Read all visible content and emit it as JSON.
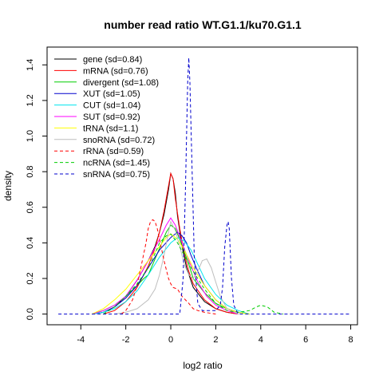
{
  "chart_data": {
    "type": "line",
    "title": "number read ratio WT.G1.1/ku70.G1.1",
    "xlabel": "log2 ratio",
    "ylabel": "density",
    "xlim": [
      -5.5,
      8.3
    ],
    "ylim": [
      -0.06,
      1.5
    ],
    "xticks": [
      -4,
      -2,
      0,
      2,
      4,
      6,
      8
    ],
    "yticks": [
      0.0,
      0.2,
      0.4,
      0.6,
      0.8,
      1.0,
      1.2,
      1.4
    ],
    "grid": false,
    "legend_position": "top-left",
    "series": [
      {
        "name": "gene (sd=0.84)",
        "color": "#000000",
        "dash": "solid",
        "x": [
          -3.5,
          -3,
          -2.5,
          -2,
          -1.5,
          -1,
          -0.7,
          -0.5,
          -0.3,
          -0.1,
          0,
          0.1,
          0.2,
          0.3,
          0.5,
          0.7,
          1,
          1.5,
          2,
          2.5,
          3
        ],
        "y": [
          0,
          0.01,
          0.04,
          0.1,
          0.19,
          0.3,
          0.38,
          0.46,
          0.56,
          0.7,
          0.79,
          0.76,
          0.68,
          0.55,
          0.38,
          0.26,
          0.15,
          0.07,
          0.03,
          0.01,
          0
        ]
      },
      {
        "name": "mRNA (sd=0.76)",
        "color": "#ff0000",
        "dash": "solid",
        "x": [
          -3,
          -2.5,
          -2,
          -1.5,
          -1,
          -0.7,
          -0.5,
          -0.3,
          -0.1,
          0,
          0.1,
          0.2,
          0.4,
          0.6,
          0.8,
          1,
          1.5,
          2,
          2.5,
          3
        ],
        "y": [
          0,
          0.02,
          0.07,
          0.15,
          0.27,
          0.37,
          0.46,
          0.58,
          0.72,
          0.79,
          0.76,
          0.65,
          0.48,
          0.34,
          0.24,
          0.17,
          0.08,
          0.03,
          0.01,
          0
        ]
      },
      {
        "name": "divergent (sd=1.08)",
        "color": "#00cd00",
        "dash": "solid",
        "x": [
          -3.5,
          -3,
          -2.5,
          -2,
          -1.5,
          -1.2,
          -1,
          -0.8,
          -0.6,
          -0.4,
          -0.2,
          0,
          0.2,
          0.4,
          0.6,
          0.8,
          1,
          1.5,
          2,
          2.5,
          3,
          3.5
        ],
        "y": [
          0,
          0.02,
          0.05,
          0.1,
          0.16,
          0.2,
          0.22,
          0.28,
          0.34,
          0.4,
          0.46,
          0.5,
          0.48,
          0.42,
          0.35,
          0.28,
          0.2,
          0.12,
          0.06,
          0.03,
          0.01,
          0
        ]
      },
      {
        "name": "XUT (sd=1.05)",
        "color": "#0000cd",
        "dash": "solid",
        "x": [
          -3.5,
          -3,
          -2.5,
          -2,
          -1.5,
          -1,
          -0.5,
          0,
          0.3,
          0.5,
          0.7,
          0.9,
          1.2,
          1.5,
          2,
          2.5,
          3,
          3.5
        ],
        "y": [
          0,
          0.01,
          0.04,
          0.09,
          0.16,
          0.26,
          0.36,
          0.43,
          0.46,
          0.44,
          0.4,
          0.33,
          0.24,
          0.16,
          0.08,
          0.03,
          0.01,
          0
        ]
      },
      {
        "name": "CUT (sd=1.04)",
        "color": "#00e5ee",
        "dash": "solid",
        "x": [
          -3.5,
          -3,
          -2.5,
          -2,
          -1.5,
          -1,
          -0.5,
          0,
          0.3,
          0.6,
          0.9,
          1.2,
          1.5,
          2,
          2.5,
          3,
          3.5
        ],
        "y": [
          0,
          0.01,
          0.03,
          0.07,
          0.13,
          0.22,
          0.32,
          0.4,
          0.43,
          0.41,
          0.36,
          0.28,
          0.2,
          0.11,
          0.05,
          0.02,
          0
        ]
      },
      {
        "name": "SUT (sd=0.92)",
        "color": "#ff00ff",
        "dash": "solid",
        "x": [
          -3.5,
          -3,
          -2.5,
          -2,
          -1.5,
          -1,
          -0.5,
          -0.2,
          0,
          0.2,
          0.5,
          0.8,
          1.2,
          1.6,
          2,
          2.5,
          3
        ],
        "y": [
          0,
          0.02,
          0.05,
          0.1,
          0.19,
          0.3,
          0.42,
          0.5,
          0.54,
          0.5,
          0.4,
          0.3,
          0.18,
          0.1,
          0.05,
          0.02,
          0
        ]
      },
      {
        "name": "tRNA (sd=1.1)",
        "color": "#ffff00",
        "dash": "solid",
        "x": [
          -3.5,
          -3,
          -2.5,
          -2,
          -1.5,
          -1,
          -0.5,
          -0.2,
          0,
          0.3,
          0.6,
          1,
          1.5,
          2,
          2.5,
          3,
          3.5
        ],
        "y": [
          0,
          0.03,
          0.08,
          0.14,
          0.22,
          0.3,
          0.38,
          0.43,
          0.45,
          0.42,
          0.36,
          0.26,
          0.16,
          0.08,
          0.03,
          0.01,
          0
        ]
      },
      {
        "name": "snoRNA (sd=0.72)",
        "color": "#bebebe",
        "dash": "solid",
        "x": [
          -2.5,
          -2,
          -1.5,
          -1,
          -0.7,
          -0.5,
          -0.3,
          -0.1,
          0,
          0.2,
          0.4,
          0.6,
          0.8,
          1,
          1.2,
          1.4,
          1.6,
          1.8,
          2,
          2.2,
          2.5,
          3
        ],
        "y": [
          0,
          0.01,
          0.03,
          0.08,
          0.14,
          0.22,
          0.33,
          0.46,
          0.52,
          0.47,
          0.38,
          0.28,
          0.22,
          0.2,
          0.24,
          0.3,
          0.31,
          0.26,
          0.18,
          0.1,
          0.03,
          0
        ]
      },
      {
        "name": "rRNA (sd=0.59)",
        "color": "#ff0000",
        "dash": "dashed",
        "x": [
          -2.2,
          -2,
          -1.7,
          -1.5,
          -1.3,
          -1.1,
          -1,
          -0.9,
          -0.8,
          -0.7,
          -0.6,
          -0.5,
          -0.3,
          -0.1,
          0,
          0.1,
          0.3,
          0.5,
          0.8,
          1,
          1.2,
          1.5,
          2
        ],
        "y": [
          0,
          0.02,
          0.08,
          0.16,
          0.28,
          0.4,
          0.48,
          0.52,
          0.53,
          0.52,
          0.48,
          0.42,
          0.3,
          0.2,
          0.17,
          0.15,
          0.14,
          0.1,
          0.06,
          0.03,
          0.02,
          0.01,
          0
        ]
      },
      {
        "name": "ncRNA (sd=1.45)",
        "color": "#00cd00",
        "dash": "dashed",
        "x": [
          -3,
          -2.5,
          -2,
          -1.5,
          -1,
          -0.7,
          -0.5,
          -0.2,
          0,
          0.3,
          0.6,
          1,
          1.5,
          2,
          2.5,
          3,
          3.5,
          3.8,
          4,
          4.3,
          4.6,
          5
        ],
        "y": [
          0,
          0.04,
          0.1,
          0.17,
          0.26,
          0.34,
          0.4,
          0.44,
          0.45,
          0.4,
          0.33,
          0.24,
          0.14,
          0.06,
          0.02,
          0.01,
          0.02,
          0.04,
          0.05,
          0.04,
          0.01,
          0
        ]
      },
      {
        "name": "snRNA (sd=0.75)",
        "color": "#0000cd",
        "dash": "dashed",
        "x": [
          -5,
          0.4,
          0.55,
          0.65,
          0.75,
          0.8,
          0.85,
          0.95,
          1.05,
          1.2,
          1.4,
          1.7,
          2,
          2.2,
          2.3,
          2.4,
          2.5,
          2.55,
          2.6,
          2.7,
          2.8,
          3,
          8
        ],
        "y": [
          0,
          0,
          0.2,
          0.7,
          1.3,
          1.44,
          1.3,
          0.8,
          0.3,
          0.06,
          0.02,
          0.02,
          0.02,
          0.05,
          0.15,
          0.38,
          0.5,
          0.52,
          0.48,
          0.2,
          0.05,
          0,
          0
        ]
      }
    ]
  }
}
